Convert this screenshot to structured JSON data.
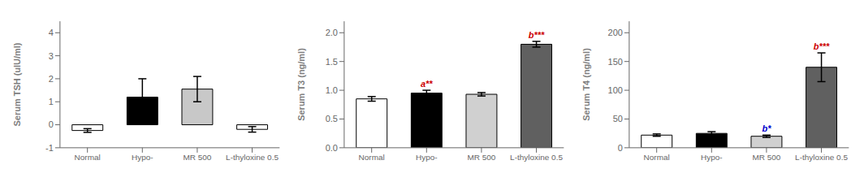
{
  "chart_data": [
    {
      "type": "bar",
      "ylabel": "Serum TSH (uIU/ml)",
      "categories": [
        "Normal",
        "Hypo-",
        "MR 500",
        "L-thyloxine 0.5"
      ],
      "values": [
        -0.25,
        1.2,
        1.55,
        -0.2
      ],
      "errors": [
        0.08,
        0.8,
        0.55,
        0.12
      ],
      "colors": [
        "#ffffff",
        "#000000",
        "#c8c8c8",
        "#ffffff"
      ],
      "edgecolors": [
        "#000000",
        "#000000",
        "#000000",
        "#000000"
      ],
      "ylim": [
        -1,
        4.5
      ],
      "yticks": [
        -1,
        0,
        1,
        2,
        3,
        4
      ],
      "annotations": []
    },
    {
      "type": "bar",
      "ylabel": "Serum T3 (ng/ml)",
      "categories": [
        "Normal",
        "Hypo-",
        "MR 500",
        "L-thyloxine 0.5"
      ],
      "values": [
        0.85,
        0.95,
        0.93,
        1.8
      ],
      "errors": [
        0.04,
        0.05,
        0.03,
        0.05
      ],
      "colors": [
        "#ffffff",
        "#000000",
        "#d0d0d0",
        "#606060"
      ],
      "edgecolors": [
        "#000000",
        "#000000",
        "#000000",
        "#000000"
      ],
      "ylim": [
        0.0,
        2.2
      ],
      "yticks": [
        {
          "value": 0,
          "label": "0.0"
        },
        0.5,
        {
          "value": 1,
          "label": "1.0"
        },
        1.5,
        {
          "value": 2,
          "label": "2.0"
        }
      ],
      "annotations": [
        {
          "category": "Hypo-",
          "text": "a**",
          "color": "#cc0000"
        },
        {
          "category": "L-thyloxine 0.5",
          "text": "b***",
          "color": "#cc0000"
        }
      ]
    },
    {
      "type": "bar",
      "ylabel": "Serum T4 (ng/ml)",
      "categories": [
        "Normal",
        "Hypo-",
        "MR 500",
        "L-thyloxine 0.5"
      ],
      "values": [
        22,
        25,
        20,
        140
      ],
      "errors": [
        2,
        3,
        2,
        25
      ],
      "colors": [
        "#ffffff",
        "#000000",
        "#d0d0d0",
        "#606060"
      ],
      "edgecolors": [
        "#000000",
        "#000000",
        "#000000",
        "#000000"
      ],
      "ylim": [
        0,
        220
      ],
      "yticks": [
        0,
        50,
        100,
        150,
        200
      ],
      "annotations": [
        {
          "category": "MR 500",
          "text": "b*",
          "color": "#0000cc"
        },
        {
          "category": "L-thyloxine 0.5",
          "text": "b***",
          "color": "#cc0000"
        }
      ]
    }
  ]
}
